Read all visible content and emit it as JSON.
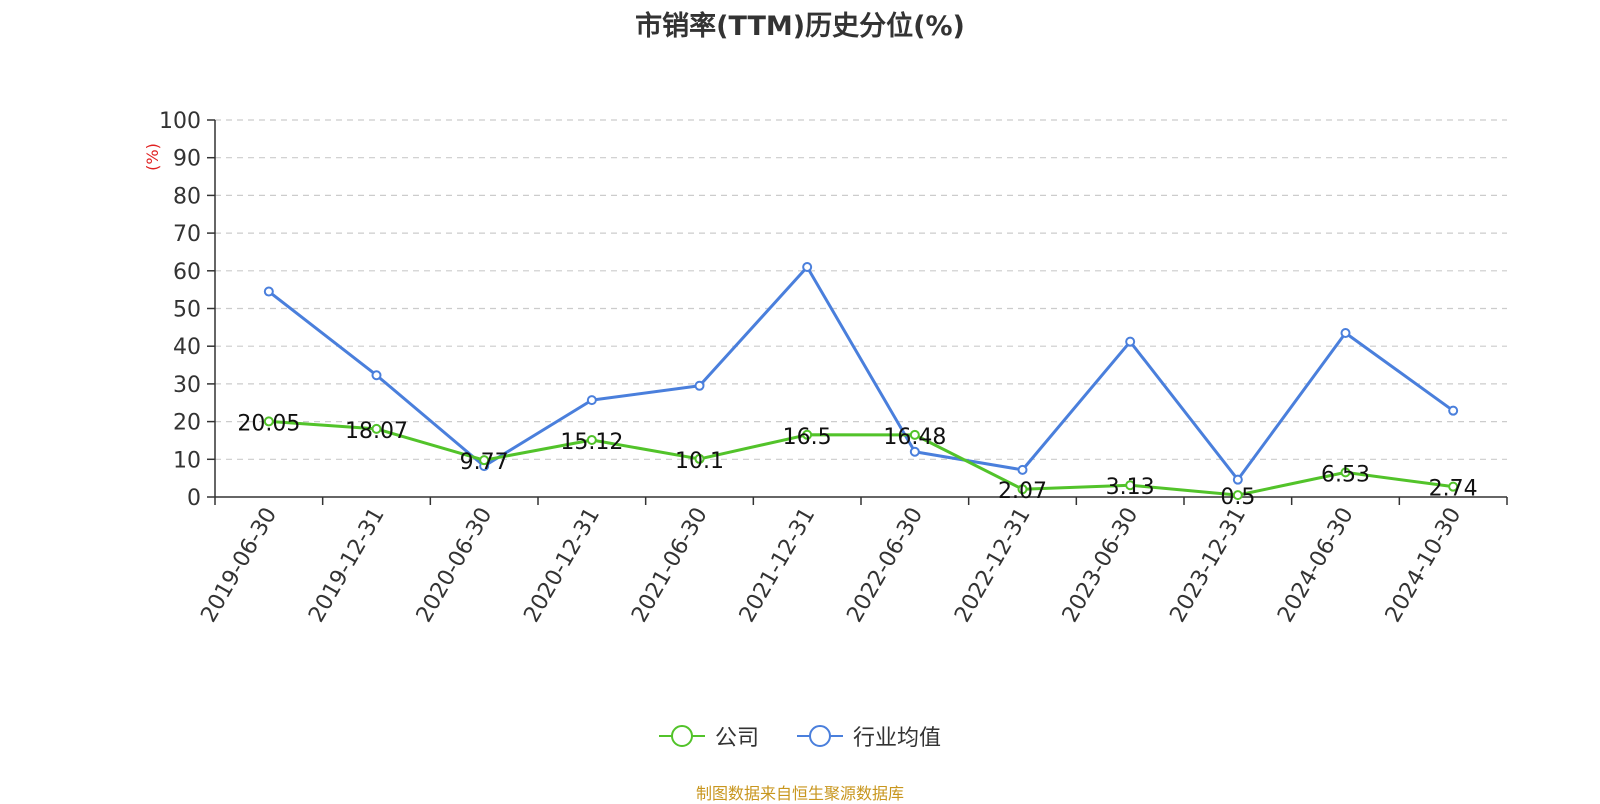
{
  "chart_data": {
    "type": "line",
    "title": "市销率(TTM)历史分位(%)",
    "ylabel": "(%)",
    "xlabel": "",
    "ylim": [
      0,
      100
    ],
    "yticks": [
      0,
      10,
      20,
      30,
      40,
      50,
      60,
      70,
      80,
      90,
      100
    ],
    "grid": true,
    "legend_position": "bottom-center",
    "categories": [
      "2019-06-30",
      "2019-12-31",
      "2020-06-30",
      "2020-12-31",
      "2021-06-30",
      "2021-12-31",
      "2022-06-30",
      "2022-12-31",
      "2023-06-30",
      "2023-12-31",
      "2024-06-30",
      "2024-10-30"
    ],
    "series": [
      {
        "name": "公司",
        "color": "#52c32a",
        "values": [
          20.05,
          18.07,
          9.77,
          15.12,
          10.1,
          16.5,
          16.48,
          2.07,
          3.13,
          0.5,
          6.53,
          2.74
        ],
        "labels": [
          "20.05",
          "18.07",
          "9.77",
          "15.12",
          "10.1",
          "16.5",
          "16.48",
          "2.07",
          "3.13",
          "0.5",
          "6.53",
          "2.74"
        ]
      },
      {
        "name": "行业均值",
        "color": "#4a7fdc",
        "values": [
          54.5,
          32.3,
          8.2,
          25.7,
          29.5,
          61.0,
          12.0,
          7.2,
          41.2,
          4.6,
          43.5,
          22.9
        ]
      }
    ]
  },
  "source_note": "制图数据来自恒生聚源数据库"
}
